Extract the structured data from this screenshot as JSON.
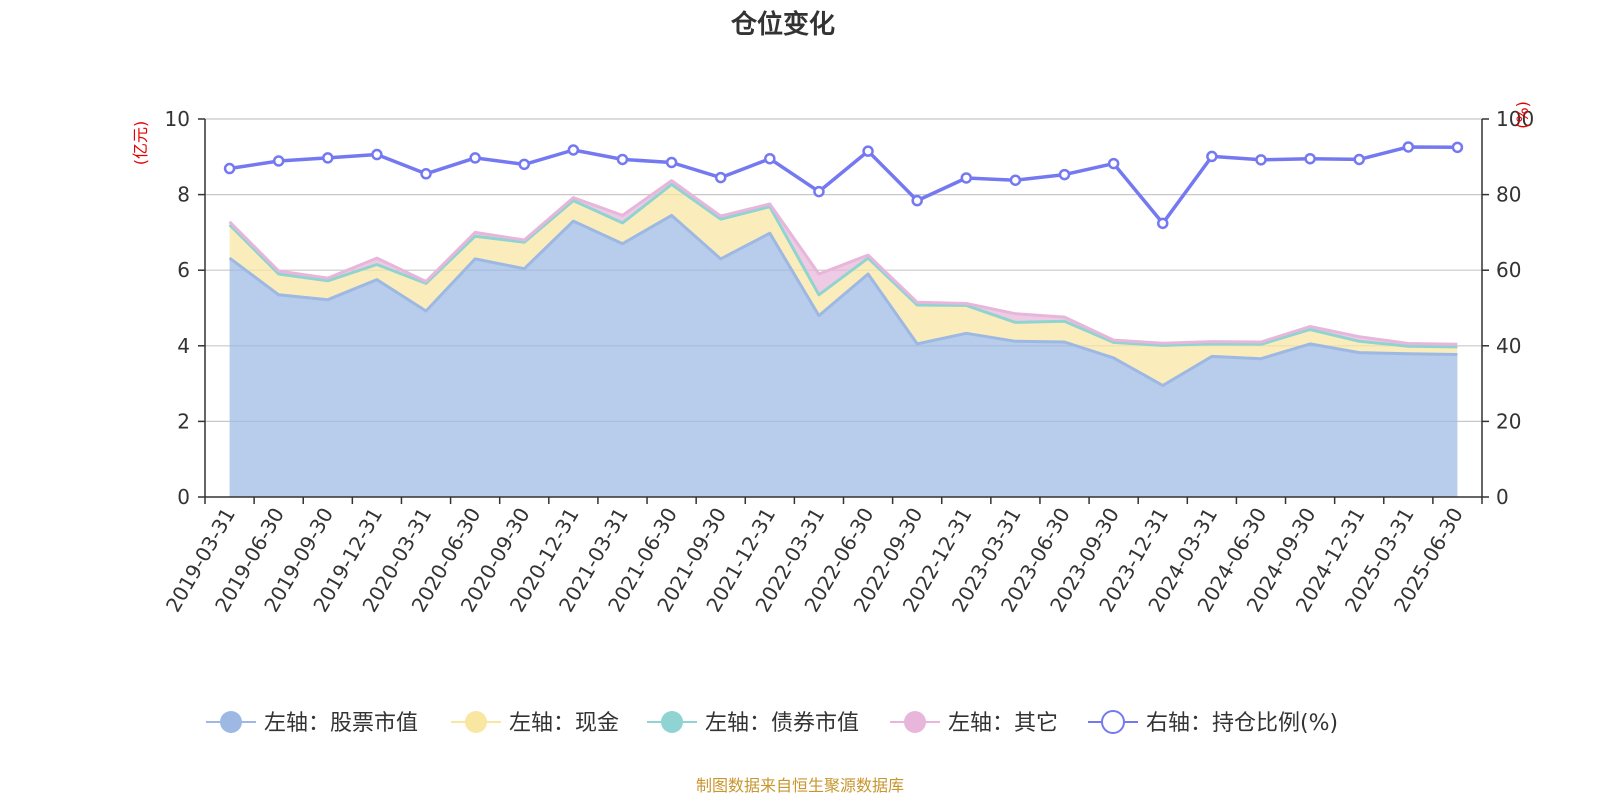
{
  "title": "仓位变化",
  "source_note": "制图数据来自恒生聚源数据库",
  "chart_data": {
    "type": "area",
    "categories": [
      "2019-03-31",
      "2019-06-30",
      "2019-09-30",
      "2019-12-31",
      "2020-03-31",
      "2020-06-30",
      "2020-09-30",
      "2020-12-31",
      "2021-03-31",
      "2021-06-30",
      "2021-09-30",
      "2021-12-31",
      "2022-03-31",
      "2022-06-30",
      "2022-09-30",
      "2022-12-31",
      "2023-03-31",
      "2023-06-30",
      "2023-09-30",
      "2023-12-31",
      "2024-03-31",
      "2024-06-30",
      "2024-09-30",
      "2024-12-31",
      "2025-03-31",
      "2025-06-30"
    ],
    "left_axis": {
      "unit": "(亿元)",
      "range": [
        0,
        10
      ],
      "ticks": [
        "0",
        "2",
        "4",
        "6",
        "8",
        "10"
      ]
    },
    "right_axis": {
      "unit": "(%)",
      "range": [
        0,
        100
      ],
      "ticks": [
        "0",
        "20",
        "40",
        "60",
        "80",
        "100"
      ]
    },
    "series": [
      {
        "name": "左轴：股票市值",
        "axis": "left",
        "stack": true,
        "color": "#9db8e3",
        "values": [
          6.32,
          5.35,
          5.22,
          5.75,
          4.92,
          6.3,
          6.04,
          7.3,
          6.7,
          7.45,
          6.3,
          6.98,
          4.8,
          5.9,
          4.05,
          4.33,
          4.12,
          4.1,
          3.68,
          2.95,
          3.72,
          3.66,
          4.05,
          3.82,
          3.79,
          3.77
        ]
      },
      {
        "name": "左轴：现金",
        "axis": "left",
        "stack": true,
        "color": "#f9e6a1",
        "values": [
          0.88,
          0.55,
          0.5,
          0.4,
          0.73,
          0.6,
          0.7,
          0.54,
          0.55,
          0.82,
          1.05,
          0.7,
          0.55,
          0.42,
          1.03,
          0.74,
          0.5,
          0.55,
          0.41,
          1.06,
          0.33,
          0.38,
          0.38,
          0.3,
          0.2,
          0.2
        ]
      },
      {
        "name": "左轴：债券市值",
        "axis": "left",
        "stack": true,
        "color": "#8fd3d3",
        "values": [
          0,
          0,
          0,
          0,
          0,
          0,
          0,
          0,
          0,
          0,
          0,
          0,
          0,
          0,
          0,
          0,
          0,
          0,
          0,
          0,
          0,
          0,
          0,
          0,
          0,
          0
        ]
      },
      {
        "name": "左轴：其它",
        "axis": "left",
        "stack": true,
        "color": "#e7b6da",
        "values": [
          0.08,
          0.08,
          0.07,
          0.17,
          0.05,
          0.1,
          0.06,
          0.08,
          0.2,
          0.1,
          0.08,
          0.07,
          0.55,
          0.08,
          0.07,
          0.05,
          0.23,
          0.11,
          0.06,
          0.06,
          0.06,
          0.06,
          0.08,
          0.12,
          0.07,
          0.07
        ]
      },
      {
        "name": "右轴：持仓比例(%)",
        "axis": "right",
        "stack": false,
        "color": "#7479f1",
        "values": [
          86.9,
          88.9,
          89.7,
          90.6,
          85.5,
          89.7,
          88.0,
          91.8,
          89.3,
          88.5,
          84.5,
          89.5,
          80.8,
          91.5,
          78.4,
          84.4,
          83.8,
          85.3,
          88.2,
          72.4,
          90.1,
          89.2,
          89.5,
          89.3,
          92.6,
          92.5
        ]
      }
    ]
  }
}
